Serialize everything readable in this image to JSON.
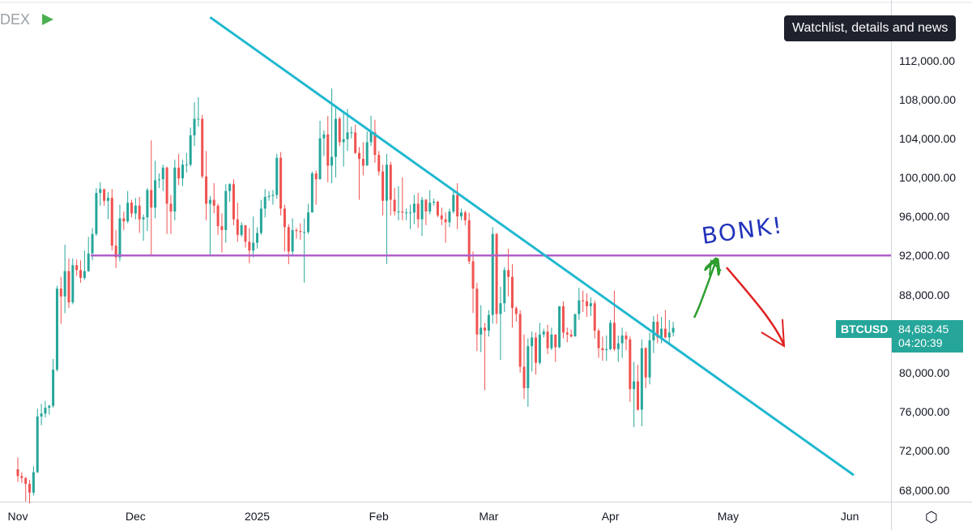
{
  "header": {
    "symbol_partial": "DEX",
    "flag_color": "#4caf50"
  },
  "tooltip": {
    "text": "Watchlist, details and news"
  },
  "price": {
    "symbol": "BTCUSD",
    "value": "84,683.45",
    "countdown": "04:20:39",
    "color": "#26a69a"
  },
  "annotation": {
    "text": "BONK!"
  },
  "colors": {
    "up": "#26a69a",
    "down": "#ef5350",
    "trendline": "#20b8d0",
    "support": "#b05fc8",
    "arrow_up": "#2e9d2e",
    "arrow_down": "#e02020"
  },
  "icons": {
    "settings": "settings-hexagon-icon"
  },
  "chart_data": {
    "type": "candlestick",
    "y_axis": {
      "min": 66000,
      "max": 116000,
      "ticks": [
        "112,000.00",
        "108,000.00",
        "104,000.00",
        "100,000.00",
        "96,000.00",
        "92,000.00",
        "88,000.00",
        "84,000.00",
        "80,000.00",
        "76,000.00",
        "72,000.00",
        "68,000.00"
      ],
      "tick_values": [
        112000,
        108000,
        104000,
        100000,
        96000,
        92000,
        88000,
        84000,
        80000,
        76000,
        72000,
        68000
      ]
    },
    "x_axis": {
      "ticks": [
        "Nov",
        "Dec",
        "2025",
        "Feb",
        "Mar",
        "Apr",
        "May",
        "Jun"
      ],
      "tick_dates": [
        "2024-11-01",
        "2024-12-01",
        "2025-01-01",
        "2025-02-01",
        "2025-03-01",
        "2025-04-01",
        "2025-05-01",
        "2025-06-01"
      ],
      "range": [
        "2024-11-01",
        "2025-06-01"
      ]
    },
    "support_level": 92100,
    "trendline": [
      {
        "date": "2024-12-20",
        "value": 116500
      },
      {
        "date": "2025-06-02",
        "value": 69600
      }
    ],
    "ohlc": [
      [
        "2024-11-01",
        70200,
        71400,
        68900,
        69500
      ],
      [
        "2024-11-02",
        69500,
        69900,
        68800,
        69300
      ],
      [
        "2024-11-03",
        69300,
        69400,
        66900,
        68700
      ],
      [
        "2024-11-04",
        68700,
        69100,
        66700,
        67800
      ],
      [
        "2024-11-05",
        67800,
        70500,
        67500,
        69900
      ],
      [
        "2024-11-06",
        69900,
        76400,
        69800,
        75600
      ],
      [
        "2024-11-07",
        75600,
        76900,
        74700,
        75900
      ],
      [
        "2024-11-08",
        75900,
        77200,
        75500,
        76500
      ],
      [
        "2024-11-09",
        76500,
        76800,
        75800,
        76700
      ],
      [
        "2024-11-10",
        76700,
        81500,
        76500,
        80400
      ],
      [
        "2024-11-11",
        80400,
        89000,
        80200,
        88700
      ],
      [
        "2024-11-12",
        88700,
        89900,
        85100,
        87900
      ],
      [
        "2024-11-13",
        87900,
        93200,
        86200,
        90500
      ],
      [
        "2024-11-14",
        90500,
        91800,
        86700,
        87300
      ],
      [
        "2024-11-15",
        87300,
        91800,
        87100,
        91100
      ],
      [
        "2024-11-16",
        91100,
        91700,
        90000,
        90600
      ],
      [
        "2024-11-17",
        90600,
        91600,
        89300,
        89800
      ],
      [
        "2024-11-18",
        89800,
        92600,
        89600,
        90500
      ],
      [
        "2024-11-19",
        90500,
        94000,
        90400,
        92300
      ],
      [
        "2024-11-20",
        92300,
        94900,
        91600,
        94300
      ],
      [
        "2024-11-21",
        94300,
        99000,
        94100,
        98500
      ],
      [
        "2024-11-22",
        98500,
        99600,
        97200,
        98900
      ],
      [
        "2024-11-23",
        98900,
        98900,
        97200,
        97700
      ],
      [
        "2024-11-24",
        97700,
        98600,
        95800,
        98000
      ],
      [
        "2024-11-25",
        98000,
        98900,
        92600,
        93100
      ],
      [
        "2024-11-26",
        93100,
        94700,
        90800,
        91900
      ],
      [
        "2024-11-27",
        91900,
        97300,
        91500,
        95900
      ],
      [
        "2024-11-28",
        95900,
        96600,
        94700,
        95600
      ],
      [
        "2024-11-29",
        95600,
        98700,
        95400,
        97500
      ],
      [
        "2024-11-30",
        97500,
        97800,
        96000,
        96400
      ],
      [
        "2024-12-01",
        96400,
        98000,
        95800,
        97200
      ],
      [
        "2024-12-02",
        97200,
        98100,
        94400,
        95800
      ],
      [
        "2024-12-03",
        95800,
        96300,
        93600,
        96000
      ],
      [
        "2024-12-04",
        96000,
        99000,
        94600,
        98800
      ],
      [
        "2024-12-05",
        98800,
        103900,
        92100,
        97000
      ],
      [
        "2024-12-06",
        97000,
        101800,
        95900,
        99800
      ],
      [
        "2024-12-07",
        99800,
        100500,
        99000,
        99900
      ],
      [
        "2024-12-08",
        99900,
        101400,
        98700,
        101100
      ],
      [
        "2024-12-09",
        101100,
        101200,
        94300,
        97400
      ],
      [
        "2024-12-10",
        97400,
        98300,
        94300,
        96600
      ],
      [
        "2024-12-11",
        96600,
        101900,
        95700,
        101100
      ],
      [
        "2024-12-12",
        101100,
        102500,
        99300,
        100000
      ],
      [
        "2024-12-13",
        100000,
        101900,
        99200,
        101400
      ],
      [
        "2024-12-14",
        101400,
        102600,
        100600,
        101400
      ],
      [
        "2024-12-15",
        101400,
        105200,
        101200,
        104400
      ],
      [
        "2024-12-16",
        104400,
        107800,
        103300,
        106100
      ],
      [
        "2024-12-17",
        106100,
        108300,
        105300,
        106100
      ],
      [
        "2024-12-18",
        106100,
        106500,
        100000,
        100200
      ],
      [
        "2024-12-19",
        100200,
        102800,
        95700,
        97400
      ],
      [
        "2024-12-20",
        97400,
        98200,
        92200,
        97800
      ],
      [
        "2024-12-21",
        97800,
        99500,
        96400,
        97200
      ],
      [
        "2024-12-22",
        97200,
        97400,
        94200,
        95100
      ],
      [
        "2024-12-23",
        95100,
        96400,
        92400,
        94700
      ],
      [
        "2024-12-24",
        94700,
        99400,
        93400,
        98700
      ],
      [
        "2024-12-25",
        98700,
        99500,
        97600,
        99400
      ],
      [
        "2024-12-26",
        99400,
        99900,
        95200,
        95800
      ],
      [
        "2024-12-27",
        95800,
        97500,
        93500,
        94200
      ],
      [
        "2024-12-28",
        94200,
        95500,
        94000,
        95200
      ],
      [
        "2024-12-29",
        95200,
        95200,
        92900,
        93500
      ],
      [
        "2024-12-30",
        93500,
        94900,
        91300,
        92600
      ],
      [
        "2024-12-31",
        92600,
        96100,
        91900,
        93400
      ],
      [
        "2025-01-01",
        93400,
        95000,
        92800,
        94400
      ],
      [
        "2025-01-02",
        94400,
        97800,
        94200,
        96900
      ],
      [
        "2025-01-03",
        96900,
        98900,
        96000,
        98100
      ],
      [
        "2025-01-04",
        98100,
        98700,
        97700,
        98200
      ],
      [
        "2025-01-05",
        98200,
        98800,
        97300,
        98300
      ],
      [
        "2025-01-06",
        98300,
        102500,
        97900,
        102100
      ],
      [
        "2025-01-07",
        102100,
        102700,
        96200,
        96900
      ],
      [
        "2025-01-08",
        96900,
        97300,
        92500,
        95000
      ],
      [
        "2025-01-09",
        95000,
        95300,
        91200,
        92500
      ],
      [
        "2025-01-10",
        92500,
        95900,
        92200,
        94700
      ],
      [
        "2025-01-11",
        94700,
        94900,
        93800,
        94600
      ],
      [
        "2025-01-12",
        94600,
        95400,
        93700,
        94500
      ],
      [
        "2025-01-13",
        94500,
        95900,
        89300,
        94500
      ],
      [
        "2025-01-14",
        94500,
        97400,
        94300,
        96500
      ],
      [
        "2025-01-15",
        96500,
        100700,
        96500,
        100500
      ],
      [
        "2025-01-16",
        100500,
        100800,
        97300,
        99900
      ],
      [
        "2025-01-17",
        99900,
        105900,
        99900,
        104100
      ],
      [
        "2025-01-18",
        104100,
        104900,
        102300,
        104500
      ],
      [
        "2025-01-19",
        104500,
        106400,
        99600,
        101300
      ],
      [
        "2025-01-20",
        101300,
        109200,
        99500,
        102200
      ],
      [
        "2025-01-21",
        102200,
        107200,
        100100,
        106100
      ],
      [
        "2025-01-22",
        106100,
        106300,
        103300,
        103700
      ],
      [
        "2025-01-23",
        103700,
        106800,
        101200,
        104000
      ],
      [
        "2025-01-24",
        104000,
        107100,
        102800,
        104700
      ],
      [
        "2025-01-25",
        104700,
        105300,
        104100,
        104700
      ],
      [
        "2025-01-26",
        104700,
        105500,
        102500,
        102600
      ],
      [
        "2025-01-27",
        102600,
        103200,
        97800,
        102000
      ],
      [
        "2025-01-28",
        102000,
        103700,
        100300,
        101300
      ],
      [
        "2025-01-29",
        101300,
        104800,
        101300,
        103700
      ],
      [
        "2025-01-30",
        103700,
        106400,
        103300,
        104700
      ],
      [
        "2025-01-31",
        104700,
        106000,
        101600,
        102400
      ],
      [
        "2025-02-01",
        102400,
        102800,
        100300,
        100700
      ],
      [
        "2025-02-02",
        100700,
        101400,
        96200,
        97700
      ],
      [
        "2025-02-03",
        97700,
        102500,
        91200,
        101400
      ],
      [
        "2025-02-04",
        101400,
        101700,
        96200,
        97800
      ],
      [
        "2025-02-05",
        97800,
        99000,
        96200,
        96600
      ],
      [
        "2025-02-06",
        96600,
        99200,
        95700,
        96600
      ],
      [
        "2025-02-07",
        96600,
        100100,
        95700,
        96500
      ],
      [
        "2025-02-08",
        96500,
        96900,
        95700,
        96500
      ],
      [
        "2025-02-09",
        96500,
        97300,
        94800,
        96500
      ],
      [
        "2025-02-10",
        96500,
        98300,
        95300,
        97400
      ],
      [
        "2025-02-11",
        97400,
        98500,
        94900,
        95800
      ],
      [
        "2025-02-12",
        95800,
        98100,
        94100,
        97800
      ],
      [
        "2025-02-13",
        97800,
        97900,
        95200,
        96600
      ],
      [
        "2025-02-14",
        96600,
        98800,
        96300,
        97500
      ],
      [
        "2025-02-15",
        97500,
        97900,
        97200,
        97600
      ],
      [
        "2025-02-16",
        97600,
        97700,
        96000,
        96200
      ],
      [
        "2025-02-17",
        96200,
        97000,
        95200,
        95800
      ],
      [
        "2025-02-18",
        95800,
        96500,
        93400,
        95500
      ],
      [
        "2025-02-19",
        95500,
        96900,
        95000,
        96600
      ],
      [
        "2025-02-20",
        96600,
        98700,
        96400,
        98300
      ],
      [
        "2025-02-21",
        98300,
        99500,
        94800,
        96100
      ],
      [
        "2025-02-22",
        96100,
        96900,
        95700,
        96500
      ],
      [
        "2025-02-23",
        96500,
        96700,
        95200,
        95700
      ],
      [
        "2025-02-24",
        95700,
        96500,
        91200,
        91500
      ],
      [
        "2025-02-25",
        91500,
        92500,
        86200,
        88700
      ],
      [
        "2025-02-26",
        88700,
        89300,
        82300,
        84000
      ],
      [
        "2025-02-27",
        84000,
        87000,
        82200,
        84700
      ],
      [
        "2025-02-28",
        84700,
        85200,
        78300,
        84400
      ],
      [
        "2025-03-01",
        84400,
        86500,
        83800,
        86000
      ],
      [
        "2025-03-02",
        86000,
        95000,
        85100,
        94300
      ],
      [
        "2025-03-03",
        94300,
        94400,
        85100,
        86100
      ],
      [
        "2025-03-04",
        86100,
        88900,
        81400,
        87200
      ],
      [
        "2025-03-05",
        87200,
        90900,
        86300,
        90600
      ],
      [
        "2025-03-06",
        90600,
        92800,
        87900,
        89900
      ],
      [
        "2025-03-07",
        89900,
        91200,
        84700,
        86700
      ],
      [
        "2025-03-08",
        86700,
        86900,
        85300,
        86100
      ],
      [
        "2025-03-09",
        86100,
        86500,
        80100,
        80700
      ],
      [
        "2025-03-10",
        80700,
        84000,
        77400,
        78500
      ],
      [
        "2025-03-11",
        78500,
        83600,
        76600,
        82800
      ],
      [
        "2025-03-12",
        82800,
        84300,
        80200,
        83700
      ],
      [
        "2025-03-13",
        83700,
        84200,
        79900,
        81100
      ],
      [
        "2025-03-14",
        81100,
        85200,
        80900,
        84000
      ],
      [
        "2025-03-15",
        84000,
        84600,
        83700,
        84300
      ],
      [
        "2025-03-16",
        84300,
        85000,
        82000,
        82600
      ],
      [
        "2025-03-17",
        82600,
        84700,
        82400,
        84000
      ],
      [
        "2025-03-18",
        84000,
        84000,
        81200,
        82700
      ],
      [
        "2025-03-19",
        82700,
        86800,
        82600,
        86900
      ],
      [
        "2025-03-20",
        86900,
        87400,
        83600,
        84200
      ],
      [
        "2025-03-21",
        84200,
        84700,
        83200,
        84000
      ],
      [
        "2025-03-22",
        84000,
        84500,
        83700,
        83800
      ],
      [
        "2025-03-23",
        83800,
        86100,
        83800,
        86100
      ],
      [
        "2025-03-24",
        86100,
        88800,
        85500,
        87500
      ],
      [
        "2025-03-25",
        87500,
        88500,
        86300,
        87400
      ],
      [
        "2025-03-26",
        87400,
        88200,
        85800,
        86900
      ],
      [
        "2025-03-27",
        86900,
        87800,
        85900,
        87200
      ],
      [
        "2025-03-28",
        87200,
        87500,
        83600,
        84400
      ],
      [
        "2025-03-29",
        84400,
        84600,
        81600,
        82600
      ],
      [
        "2025-03-30",
        82600,
        83800,
        81300,
        82400
      ],
      [
        "2025-03-31",
        82400,
        83900,
        81300,
        82500
      ],
      [
        "2025-04-01",
        82500,
        85500,
        82400,
        85200
      ],
      [
        "2025-04-02",
        85200,
        88500,
        82300,
        82500
      ],
      [
        "2025-04-03",
        82500,
        83900,
        81200,
        83100
      ],
      [
        "2025-04-04",
        83100,
        84700,
        81600,
        83900
      ],
      [
        "2025-04-05",
        83900,
        84300,
        82400,
        83500
      ],
      [
        "2025-04-06",
        83500,
        83800,
        77100,
        78400
      ],
      [
        "2025-04-07",
        78400,
        81200,
        74500,
        79200
      ],
      [
        "2025-04-08",
        79200,
        80900,
        76200,
        76300
      ],
      [
        "2025-04-09",
        76300,
        83500,
        74600,
        82600
      ],
      [
        "2025-04-10",
        82600,
        82700,
        78500,
        79600
      ],
      [
        "2025-04-11",
        79600,
        84200,
        78900,
        83400
      ],
      [
        "2025-04-12",
        83400,
        85900,
        82100,
        85300
      ],
      [
        "2025-04-13",
        85300,
        86100,
        83100,
        83700
      ],
      [
        "2025-04-14",
        83700,
        85800,
        83100,
        84600
      ],
      [
        "2025-04-15",
        84600,
        86500,
        83600,
        83700
      ],
      [
        "2025-04-16",
        83700,
        85500,
        83100,
        84200
      ],
      [
        "2025-04-17",
        84200,
        85300,
        83800,
        84683
      ]
    ]
  }
}
